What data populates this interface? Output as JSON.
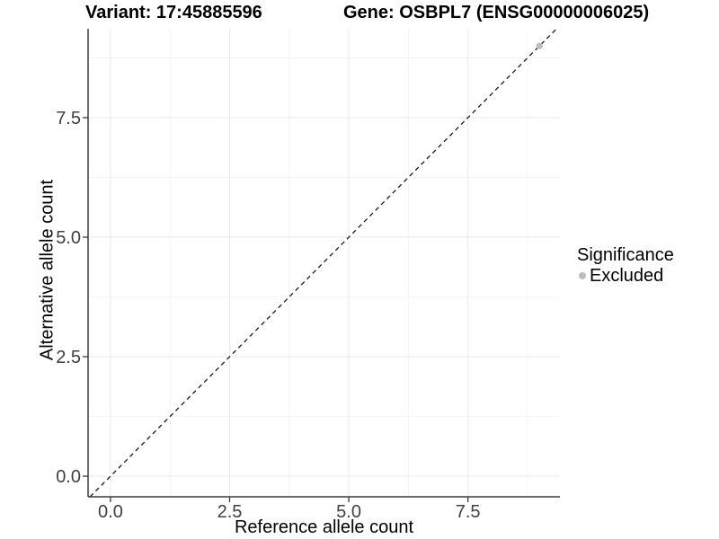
{
  "chart_data": {
    "type": "scatter",
    "title_left": "Variant: 17:45885596",
    "title_right": "Gene: OSBPL7 (ENSG00000006025)",
    "xlabel": "Reference allele count",
    "ylabel": "Alternative allele count",
    "xlim": [
      -0.47,
      9.43
    ],
    "ylim": [
      -0.43,
      9.36
    ],
    "x_ticks": {
      "values": [
        0,
        2.5,
        5,
        7.5
      ],
      "labels": [
        "0.0",
        "2.5",
        "5.0",
        "7.5"
      ]
    },
    "y_ticks": {
      "values": [
        0,
        2.5,
        5,
        7.5
      ],
      "labels": [
        "0.0",
        "2.5",
        "5.0",
        "7.5"
      ]
    },
    "x_minor": [
      1.25,
      3.75,
      6.25,
      8.75
    ],
    "y_minor": [
      1.25,
      3.75,
      6.25,
      8.75
    ],
    "grid": true,
    "series": [
      {
        "name": "Excluded",
        "color": "#bdbdbd",
        "points": [
          {
            "x": 9,
            "y": 9
          }
        ]
      }
    ],
    "reference_line": {
      "type": "identity",
      "slope": 1,
      "intercept": 0,
      "style": "dashed",
      "color": "#1a1a1a"
    },
    "legend": {
      "position": "right",
      "title": "Significance",
      "items": [
        {
          "label": "Excluded",
          "color": "#bdbdbd"
        }
      ]
    },
    "colors": {
      "background": "#ffffff",
      "grid_major": "#e9e9e9",
      "grid_minor": "#f4f4f4",
      "axis": "#3c3c3c",
      "tick_label": "#404040",
      "point": "#bdbdbd"
    }
  }
}
